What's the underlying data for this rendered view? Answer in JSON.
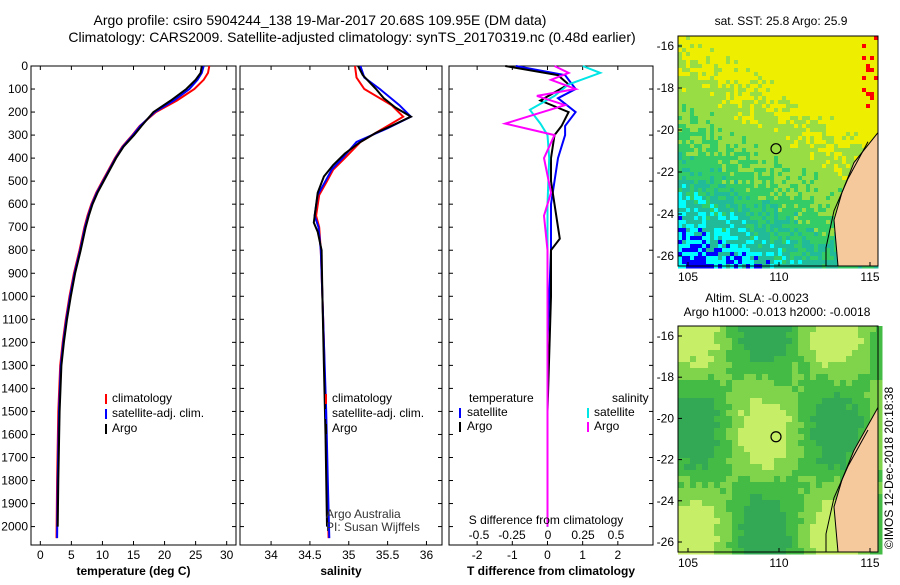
{
  "title": {
    "line1": "Argo profile: csiro 5904244_138 19-Mar-2017 20.68S 109.95E (DM data)",
    "line2": "Climatology: CARS2009. Satellite-adjusted climatology: synTS_20170319.nc (0.48d earlier)"
  },
  "colors": {
    "climatology": "#ff0000",
    "satellite": "#0000ff",
    "argo": "#000000",
    "satellite_s": "#00e5e5",
    "argo_s": "#ff00ff",
    "ocean_deep": "#0000ff",
    "ocean_cyan": "#00ffff",
    "ocean_green": "#33cc66",
    "ocean_yellow": "#eeee00",
    "land": "#f5c99b"
  },
  "chart_data": [
    {
      "type": "line",
      "panel": "temperature",
      "xlabel": "temperature (deg C)",
      "xlim": [
        -1.5,
        31.5
      ],
      "xticks": [
        "0",
        "5",
        "10",
        "15",
        "20",
        "25",
        "30"
      ],
      "ylim": [
        0,
        2080
      ],
      "yticks": [
        "0",
        "100",
        "200",
        "300",
        "400",
        "500",
        "600",
        "700",
        "800",
        "900",
        "1000",
        "1100",
        "1200",
        "1300",
        "1400",
        "1500",
        "1600",
        "1700",
        "1800",
        "1900",
        "2000"
      ],
      "legend": [
        "climatology",
        "satellite-adj. clim.",
        "Argo"
      ],
      "series": [
        {
          "name": "climatology",
          "color": "#ff0000",
          "x": [
            27.2,
            27.0,
            26.3,
            24.8,
            22.0,
            18.6,
            16.0,
            14.8,
            13.2,
            12.0,
            11.0,
            10.0,
            9.0,
            8.2,
            7.6,
            7.1,
            6.3,
            5.4,
            4.7,
            4.1,
            3.6,
            3.2,
            2.9,
            2.7,
            2.6
          ],
          "y": [
            0,
            30,
            60,
            100,
            150,
            200,
            260,
            300,
            350,
            400,
            450,
            500,
            550,
            600,
            650,
            700,
            800,
            900,
            1000,
            1100,
            1200,
            1300,
            1500,
            1800,
            2050
          ]
        },
        {
          "name": "satellite-adj. clim.",
          "color": "#0000ff",
          "x": [
            26.3,
            26.0,
            25.3,
            24.0,
            21.5,
            18.4,
            16.1,
            14.9,
            13.3,
            12.1,
            11.1,
            10.1,
            9.1,
            8.3,
            7.7,
            7.2,
            6.4,
            5.5,
            4.8,
            4.2,
            3.7,
            3.3,
            3.0,
            2.8,
            2.7
          ],
          "y": [
            0,
            30,
            60,
            100,
            150,
            200,
            260,
            300,
            350,
            400,
            450,
            500,
            550,
            600,
            650,
            700,
            800,
            900,
            1000,
            1100,
            1200,
            1300,
            1500,
            1800,
            2050
          ]
        },
        {
          "name": "Argo",
          "color": "#000000",
          "x": [
            26.0,
            25.8,
            25.0,
            23.5,
            21.0,
            18.2,
            16.3,
            15.1,
            13.4,
            12.2,
            11.2,
            10.2,
            9.2,
            8.4,
            7.8,
            7.3,
            6.5,
            5.6,
            4.9,
            4.3,
            3.8,
            3.4,
            3.1,
            2.9,
            2.8
          ],
          "y": [
            0,
            30,
            60,
            100,
            150,
            200,
            260,
            300,
            350,
            400,
            450,
            500,
            550,
            600,
            650,
            700,
            800,
            900,
            1000,
            1100,
            1200,
            1300,
            1500,
            1800,
            2000
          ]
        }
      ]
    },
    {
      "type": "line",
      "panel": "salinity",
      "xlabel": "salinity",
      "xlim": [
        33.6,
        36.2
      ],
      "xticks": [
        "34",
        "34.5",
        "35",
        "35.5",
        "36"
      ],
      "ylim": [
        0,
        2080
      ],
      "legend": [
        "climatology",
        "satellite-adj. clim.",
        "Argo"
      ],
      "annotation": [
        "Argo Australia",
        "PI: Susan Wijffels"
      ],
      "series": [
        {
          "name": "climatology",
          "color": "#ff0000",
          "x": [
            35.08,
            35.1,
            35.2,
            35.55,
            35.7,
            35.45,
            35.15,
            34.95,
            34.8,
            34.72,
            34.62,
            34.58,
            34.62,
            34.64,
            34.66,
            34.68,
            34.7,
            34.72,
            34.74
          ],
          "y": [
            0,
            50,
            100,
            170,
            220,
            270,
            330,
            400,
            450,
            500,
            560,
            650,
            700,
            800,
            1000,
            1200,
            1500,
            1800,
            2050
          ]
        },
        {
          "name": "satellite-adj. clim.",
          "color": "#0000ff",
          "x": [
            35.15,
            35.2,
            35.4,
            35.65,
            35.8,
            35.5,
            35.1,
            34.92,
            34.78,
            34.7,
            34.6,
            34.56,
            34.61,
            34.64,
            34.66,
            34.68,
            34.71,
            34.73,
            34.75
          ],
          "y": [
            0,
            50,
            100,
            170,
            220,
            270,
            330,
            400,
            450,
            500,
            560,
            650,
            700,
            800,
            1000,
            1200,
            1500,
            1800,
            2050
          ]
        },
        {
          "name": "Argo",
          "color": "#000000",
          "x": [
            35.12,
            35.18,
            35.35,
            35.45,
            35.6,
            35.8,
            35.55,
            35.35,
            35.15,
            34.95,
            34.8,
            34.68,
            34.6,
            34.55,
            34.6,
            34.65,
            34.66,
            34.68,
            34.7,
            34.72
          ],
          "y": [
            0,
            40,
            100,
            140,
            180,
            220,
            260,
            290,
            330,
            380,
            430,
            480,
            550,
            680,
            720,
            800,
            1000,
            1300,
            1600,
            2000
          ]
        }
      ]
    },
    {
      "type": "line",
      "panel": "difference",
      "xlabel": "T difference from climatology",
      "xlim": [
        -2.8,
        3.0
      ],
      "xticks": [
        "-2",
        "-1",
        "0",
        "1",
        "2"
      ],
      "second_axis_label": "S difference from climatology",
      "second_xticks": [
        "-0.5",
        "-0.25",
        "0",
        "0.25",
        "0.5"
      ],
      "ylim": [
        0,
        2080
      ],
      "legend": {
        "temperature_title": "temperature",
        "salinity_title": "salinity",
        "temperature_items": [
          "satellite",
          "Argo"
        ],
        "salinity_items": [
          "satellite",
          "Argo"
        ]
      },
      "series": [
        {
          "name": "T satellite",
          "color": "#0000ff",
          "x": [
            -0.9,
            0.5,
            0.8,
            0.3,
            0.8,
            0.5,
            0.5,
            0.3,
            0.2,
            0.1,
            0.1,
            0.0,
            0.0,
            0.0
          ],
          "y": [
            0,
            40,
            100,
            140,
            200,
            260,
            300,
            400,
            500,
            600,
            800,
            1200,
            1600,
            2000
          ]
        },
        {
          "name": "T Argo",
          "color": "#000000",
          "x": [
            -1.2,
            0.3,
            0.6,
            -0.2,
            0.6,
            0.4,
            0.2,
            0.1,
            0.1,
            0.2,
            0.3,
            0.35,
            0.1,
            0.1,
            0.0,
            0.0
          ],
          "y": [
            0,
            40,
            80,
            150,
            200,
            260,
            300,
            400,
            500,
            600,
            700,
            750,
            800,
            1000,
            1500,
            2000
          ]
        },
        {
          "name": "S satellite",
          "color": "#00e5e5",
          "x": [
            1.0,
            1.5,
            0.6,
            0.2,
            -0.5,
            -0.2,
            0.0,
            0.05,
            0.0,
            0.0,
            0.0
          ],
          "y": [
            0,
            30,
            80,
            130,
            190,
            250,
            300,
            400,
            600,
            1000,
            2000
          ]
        },
        {
          "name": "S Argo",
          "color": "#ff00ff",
          "x": [
            0.2,
            0.6,
            0.1,
            0.8,
            -0.3,
            0.5,
            -1.2,
            0.2,
            -0.1,
            0.1,
            -0.1,
            0.0,
            0.0,
            0.0
          ],
          "y": [
            0,
            30,
            60,
            100,
            130,
            170,
            250,
            300,
            400,
            550,
            650,
            800,
            1200,
            2000
          ]
        }
      ]
    }
  ],
  "maps": {
    "sst": {
      "title": "sat. SST: 25.8 Argo: 25.9",
      "lat_ticks": [
        "-16",
        "-18",
        "-20",
        "-22",
        "-24",
        "-26"
      ],
      "lon_ticks": [
        "105",
        "110",
        "115"
      ]
    },
    "sla": {
      "title1": "Altim. SLA: -0.0023",
      "title2": "Argo h1000: -0.013 h2000: -0.0018",
      "lat_ticks": [
        "-16",
        "-18",
        "-20",
        "-22",
        "-24",
        "-26"
      ],
      "lon_ticks": [
        "105",
        "110",
        "115"
      ]
    }
  },
  "footer": "©IMOS 12-Dec-2018 20:18:38"
}
